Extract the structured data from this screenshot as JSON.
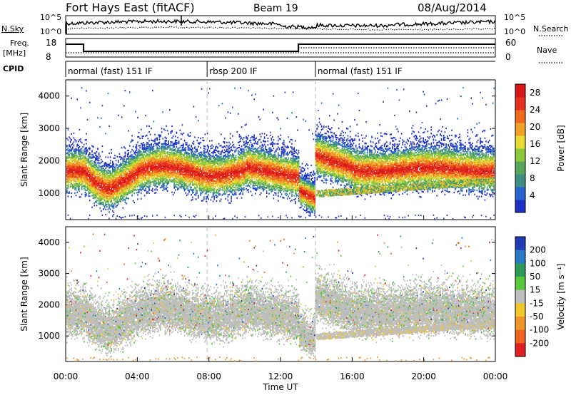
{
  "header": {
    "title": "Fort Hays East (fitACF)",
    "beam": "Beam 19",
    "date": "08/Aug/2014"
  },
  "noise_panel": {
    "left_label": "N.Sky",
    "right_label": "N.Search",
    "ticks": [
      "10^5",
      "10^0"
    ]
  },
  "freq_panel": {
    "left_label_1": "Freq.",
    "left_label_2": "[MHz]",
    "right_label": "Nave",
    "left_ticks": [
      "18",
      "8"
    ],
    "right_ticks": [
      "60",
      "0"
    ]
  },
  "cpid": {
    "label": "CPID",
    "segments": [
      {
        "label": "normal (fast) 151 IF",
        "start_hour": 0,
        "end_hour": 7.9
      },
      {
        "label": "rbsp 200 IF",
        "start_hour": 7.9,
        "end_hour": 13.95
      },
      {
        "label": "normal (fast) 151 IF",
        "start_hour": 13.95,
        "end_hour": 24
      }
    ]
  },
  "x_axis": {
    "label": "Time UT",
    "ticks": [
      "00:00",
      "04:00",
      "08:00",
      "12:00",
      "16:00",
      "20:00",
      "00:00"
    ]
  },
  "chart_data": [
    {
      "type": "heatmap",
      "ylabel": "Slant Range [km]",
      "yticks": [
        "1000",
        "2000",
        "3000",
        "4000"
      ],
      "ylim": [
        180,
        4500
      ],
      "xlim": [
        0,
        24
      ],
      "colorbar": {
        "label": "Power [dB]",
        "ticks": [
          "4",
          "8",
          "12",
          "16",
          "20",
          "24",
          "28"
        ],
        "colors": [
          "#1e32c8",
          "#2664d2",
          "#3c8f82",
          "#58a85c",
          "#8cc83c",
          "#e8dc32",
          "#f0a028",
          "#ef6a1c",
          "#e83020",
          "#d81818"
        ],
        "range": [
          0,
          30
        ]
      }
    },
    {
      "type": "heatmap",
      "ylabel": "Slant Range [km]",
      "yticks": [
        "1000",
        "2000",
        "3000",
        "4000"
      ],
      "ylim": [
        180,
        4500
      ],
      "xlim": [
        0,
        24
      ],
      "colorbar": {
        "label": "Velocity [m s⁻¹]",
        "ticks": [
          "200",
          "100",
          "50",
          "15",
          "-15",
          "-50",
          "-100",
          "-200"
        ],
        "colors": [
          "#1e3cb4",
          "#2a7ac8",
          "#2e9a5a",
          "#58c83c",
          "#bebebe",
          "#f0c828",
          "#f09628",
          "#ef6420",
          "#e02020"
        ]
      }
    }
  ]
}
